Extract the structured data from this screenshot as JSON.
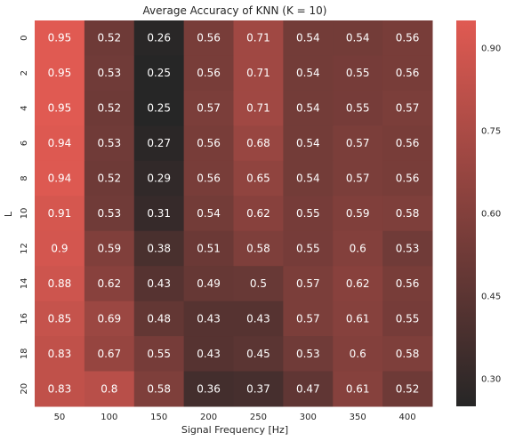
{
  "chart_data": {
    "type": "heatmap",
    "title": "Average Accuracy of KNN (K = 10)",
    "xlabel": "Signal Frequency [Hz]",
    "ylabel": "L",
    "x_categories": [
      "50",
      "100",
      "150",
      "200",
      "250",
      "300",
      "350",
      "400"
    ],
    "y_categories": [
      "0",
      "2",
      "4",
      "6",
      "8",
      "10",
      "12",
      "14",
      "16",
      "18",
      "20"
    ],
    "values": [
      [
        0.95,
        0.52,
        0.26,
        0.56,
        0.71,
        0.54,
        0.54,
        0.56
      ],
      [
        0.95,
        0.53,
        0.25,
        0.56,
        0.71,
        0.54,
        0.55,
        0.56
      ],
      [
        0.95,
        0.52,
        0.25,
        0.57,
        0.71,
        0.54,
        0.55,
        0.57
      ],
      [
        0.94,
        0.53,
        0.27,
        0.56,
        0.68,
        0.54,
        0.57,
        0.56
      ],
      [
        0.94,
        0.52,
        0.29,
        0.56,
        0.65,
        0.54,
        0.57,
        0.56
      ],
      [
        0.91,
        0.53,
        0.31,
        0.54,
        0.62,
        0.55,
        0.59,
        0.58
      ],
      [
        0.9,
        0.59,
        0.38,
        0.51,
        0.58,
        0.55,
        0.6,
        0.53
      ],
      [
        0.88,
        0.62,
        0.43,
        0.49,
        0.5,
        0.57,
        0.62,
        0.56
      ],
      [
        0.85,
        0.69,
        0.48,
        0.43,
        0.43,
        0.57,
        0.61,
        0.55
      ],
      [
        0.83,
        0.67,
        0.55,
        0.43,
        0.45,
        0.53,
        0.6,
        0.58
      ],
      [
        0.83,
        0.8,
        0.58,
        0.36,
        0.37,
        0.47,
        0.61,
        0.52
      ]
    ],
    "value_labels": [
      [
        "0.95",
        "0.52",
        "0.26",
        "0.56",
        "0.71",
        "0.54",
        "0.54",
        "0.56"
      ],
      [
        "0.95",
        "0.53",
        "0.25",
        "0.56",
        "0.71",
        "0.54",
        "0.55",
        "0.56"
      ],
      [
        "0.95",
        "0.52",
        "0.25",
        "0.57",
        "0.71",
        "0.54",
        "0.55",
        "0.57"
      ],
      [
        "0.94",
        "0.53",
        "0.27",
        "0.56",
        "0.68",
        "0.54",
        "0.57",
        "0.56"
      ],
      [
        "0.94",
        "0.52",
        "0.29",
        "0.56",
        "0.65",
        "0.54",
        "0.57",
        "0.56"
      ],
      [
        "0.91",
        "0.53",
        "0.31",
        "0.54",
        "0.62",
        "0.55",
        "0.59",
        "0.58"
      ],
      [
        "0.9",
        "0.59",
        "0.38",
        "0.51",
        "0.58",
        "0.55",
        "0.6",
        "0.53"
      ],
      [
        "0.88",
        "0.62",
        "0.43",
        "0.49",
        "0.5",
        "0.57",
        "0.62",
        "0.56"
      ],
      [
        "0.85",
        "0.69",
        "0.48",
        "0.43",
        "0.43",
        "0.57",
        "0.61",
        "0.55"
      ],
      [
        "0.83",
        "0.67",
        "0.55",
        "0.43",
        "0.45",
        "0.53",
        "0.6",
        "0.58"
      ],
      [
        "0.83",
        "0.8",
        "0.58",
        "0.36",
        "0.37",
        "0.47",
        "0.61",
        "0.52"
      ]
    ],
    "colorbar": {
      "vmin": 0.25,
      "vmax": 0.95,
      "ticks": [
        0.3,
        0.45,
        0.6,
        0.75,
        0.9
      ],
      "tick_labels": [
        "0.30",
        "0.45",
        "0.60",
        "0.75",
        "0.90"
      ],
      "color_low": "#262626",
      "color_high": "#e05a52"
    },
    "grid": false,
    "text_color": "#ffffff"
  }
}
